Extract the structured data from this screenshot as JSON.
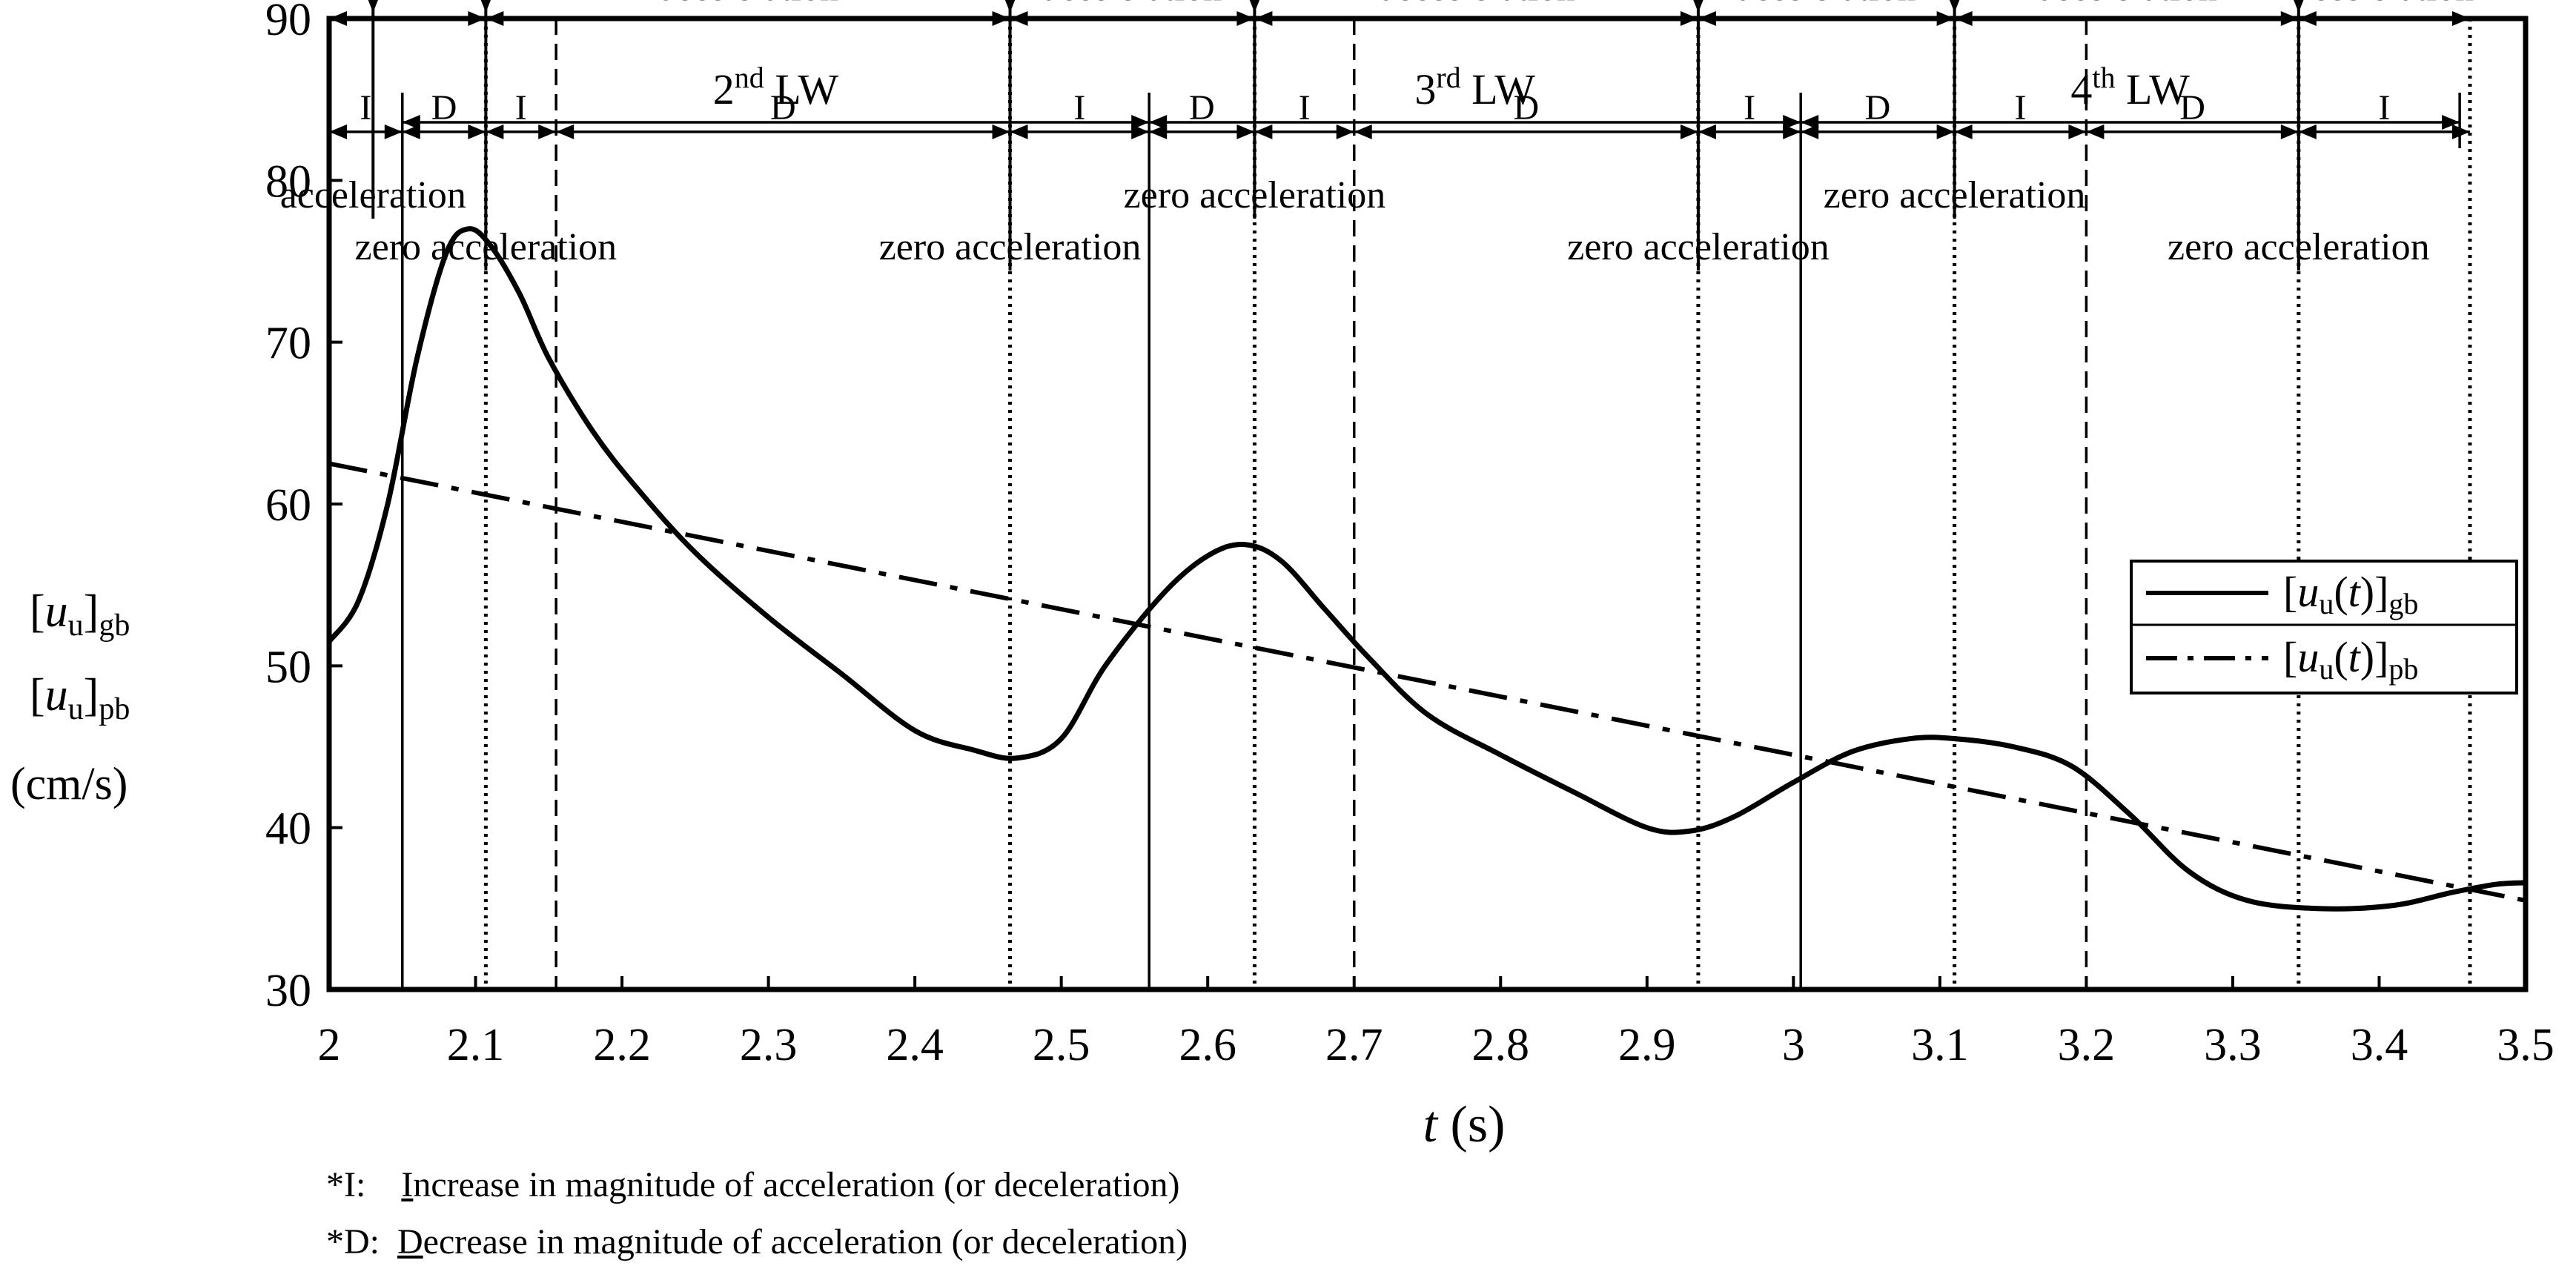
{
  "chart_data": {
    "type": "line",
    "xlabel_var": "t",
    "xlabel_unit": "(s)",
    "ylabel_lines": [
      "[u",
      "]",
      "[u",
      "]",
      "(cm/s)"
    ],
    "ylabel": {
      "sym1": "u",
      "sub1": "u",
      "post1": "gb",
      "sym2": "u",
      "sub2": "u",
      "post2": "pb",
      "unit": "(cm/s)"
    },
    "xlim": [
      2,
      3.5
    ],
    "ylim": [
      30,
      90
    ],
    "xticks": [
      2,
      2.1,
      2.2,
      2.3,
      2.4,
      2.5,
      2.6,
      2.7,
      2.8,
      2.9,
      3,
      3.1,
      3.2,
      3.3,
      3.4,
      3.5
    ],
    "xtick_labels": [
      "2",
      "2.1",
      "2.2",
      "2.3",
      "2.4",
      "2.5",
      "2.6",
      "2.7",
      "2.8",
      "2.9",
      "3",
      "3.1",
      "3.2",
      "3.3",
      "3.4",
      "3.5"
    ],
    "yticks": [
      30,
      40,
      50,
      60,
      70,
      80,
      90
    ],
    "ytick_labels": [
      "30",
      "40",
      "50",
      "60",
      "70",
      "80",
      "90"
    ],
    "series": [
      {
        "name": "[u_u(t)]_gb",
        "style": "solid",
        "x": [
          2.0,
          2.02,
          2.04,
          2.06,
          2.08,
          2.095,
          2.11,
          2.13,
          2.15,
          2.18,
          2.21,
          2.25,
          2.3,
          2.35,
          2.4,
          2.44,
          2.47,
          2.5,
          2.53,
          2.57,
          2.6,
          2.625,
          2.65,
          2.68,
          2.71,
          2.75,
          2.8,
          2.85,
          2.9,
          2.93,
          2.96,
          3.0,
          3.04,
          3.08,
          3.11,
          3.15,
          3.19,
          3.23,
          3.27,
          3.31,
          3.36,
          3.41,
          3.45,
          3.48,
          3.5
        ],
        "y": [
          51.5,
          54,
          60,
          69,
          75.5,
          77,
          76,
          73,
          69,
          64.5,
          61,
          57,
          53,
          49.5,
          46,
          44.8,
          44.3,
          45.5,
          50,
          54.5,
          56.8,
          57.5,
          56.5,
          53.5,
          50.5,
          47,
          44.5,
          42.2,
          40,
          39.8,
          40.7,
          42.8,
          44.7,
          45.5,
          45.5,
          45,
          43.8,
          40.8,
          37.3,
          35.5,
          35,
          35.2,
          36,
          36.5,
          36.6
        ]
      },
      {
        "name": "[u_u(t)]_pb",
        "style": "dash-dot",
        "x": [
          2.0,
          3.5
        ],
        "y": [
          62.5,
          35.5
        ]
      }
    ],
    "legend_entries": [
      {
        "pre": "[",
        "sym": "u",
        "sub1": "u",
        "mid": "(",
        "var": "t",
        "close": ")]",
        "sub2": "gb"
      },
      {
        "pre": "[",
        "sym": "u",
        "sub1": "u",
        "mid": "(",
        "var": "t",
        "close": ")]",
        "sub2": "pb"
      }
    ],
    "legend_position": "right",
    "lw_intervals": [
      {
        "label": "2",
        "sup": "nd",
        "suffix": " LW",
        "start": 2.05,
        "end": 2.56
      },
      {
        "label": "3",
        "sup": "rd",
        "suffix": " LW",
        "start": 2.56,
        "end": 3.005
      },
      {
        "label": "4",
        "sup": "th",
        "suffix": " LW",
        "start": 3.005,
        "end": 3.455
      }
    ],
    "solid_vlines": [
      2.05,
      2.56,
      3.005
    ],
    "dashed_vlines": [
      2.155,
      2.7,
      3.2
    ],
    "dotted_vlines": [
      2.107,
      2.465,
      2.632,
      2.935,
      3.11,
      3.345,
      3.462
    ],
    "phase_segments": [
      {
        "label": "deceleration",
        "start": 2.107,
        "end": 2.465
      },
      {
        "label": "acceleration",
        "start": 2.465,
        "end": 2.632
      },
      {
        "label": "decceleration",
        "start": 2.632,
        "end": 2.935
      },
      {
        "label": "acceleration",
        "start": 2.935,
        "end": 3.11
      },
      {
        "label": "deceleration",
        "start": 3.11,
        "end": 3.345
      },
      {
        "label": "acceleration",
        "start": 3.345,
        "end": 3.462
      }
    ],
    "first_phase_span": [
      2.0,
      2.107
    ],
    "id_segments": [
      {
        "label": "I",
        "start": 2.0,
        "end": 2.05
      },
      {
        "label": "D",
        "start": 2.05,
        "end": 2.107
      },
      {
        "label": "I",
        "start": 2.107,
        "end": 2.155
      },
      {
        "label": "D",
        "start": 2.155,
        "end": 2.465
      },
      {
        "label": "I",
        "start": 2.465,
        "end": 2.56
      },
      {
        "label": "D",
        "start": 2.56,
        "end": 2.632
      },
      {
        "label": "I",
        "start": 2.632,
        "end": 2.7
      },
      {
        "label": "D",
        "start": 2.7,
        "end": 2.935
      },
      {
        "label": "I",
        "start": 2.935,
        "end": 3.005
      },
      {
        "label": "D",
        "start": 3.005,
        "end": 3.11
      },
      {
        "label": "I",
        "start": 3.11,
        "end": 3.2
      },
      {
        "label": "D",
        "start": 3.2,
        "end": 3.345
      },
      {
        "label": "I",
        "start": 3.345,
        "end": 3.462
      }
    ],
    "point_annotations": [
      {
        "label": "acceleration",
        "x": 2.03,
        "level": "upper"
      },
      {
        "label": "zero acceleration",
        "x": 2.107,
        "level": "lower"
      },
      {
        "label": "zero acceleration",
        "x": 2.465,
        "level": "lower"
      },
      {
        "label": "zero acceleration",
        "x": 2.632,
        "level": "upper"
      },
      {
        "label": "zero acceleration",
        "x": 2.935,
        "level": "lower"
      },
      {
        "label": "zero acceleration",
        "x": 3.11,
        "level": "upper"
      },
      {
        "label": "zero acceleration",
        "x": 3.345,
        "level": "lower"
      }
    ]
  },
  "footnotes": [
    {
      "prefix": "*I:    ",
      "underlined": "I",
      "rest": "ncrease in magnitude of acceleration (or deceleration)"
    },
    {
      "prefix": "*D:  ",
      "underlined": "D",
      "rest": "ecrease in magnitude of acceleration (or deceleration)"
    }
  ]
}
